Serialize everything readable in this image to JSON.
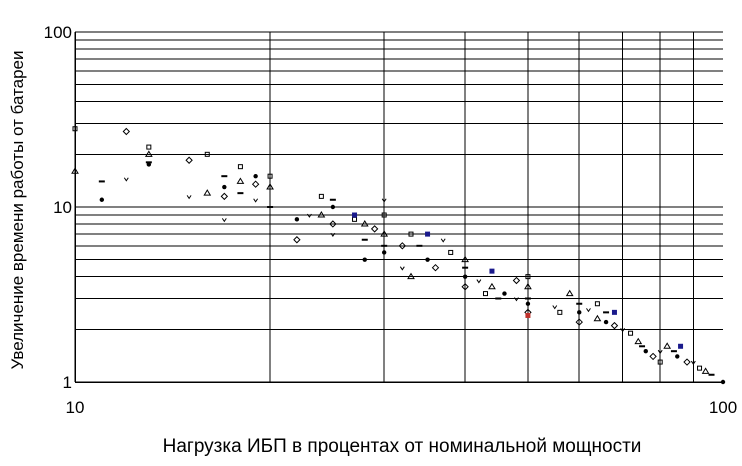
{
  "chart_data": {
    "type": "scatter",
    "title": "",
    "xlabel": "Нагрузка ИБП в процентах от номинальной мощности",
    "ylabel": "Увеличение времени работы от батареи",
    "x_scale": "log",
    "y_scale": "log",
    "xlim": [
      10,
      100
    ],
    "ylim": [
      1,
      100
    ],
    "x_ticks": [
      "10",
      "100"
    ],
    "y_ticks": [
      "100",
      "10",
      "1"
    ],
    "grid": true,
    "legend": "none",
    "colors": {
      "points": "#000000",
      "highlight_blue": "#1a1a8c",
      "highlight_red": "#c0302a",
      "grid": "#000000"
    },
    "series": [
      {
        "points": [
          [
            10,
            28
          ],
          [
            10,
            16
          ],
          [
            11,
            14
          ],
          [
            11,
            11
          ],
          [
            12,
            27
          ],
          [
            12,
            14.5
          ],
          [
            13,
            22
          ],
          [
            13,
            20
          ],
          [
            13,
            18
          ],
          [
            13,
            17.5
          ],
          [
            15,
            18.5
          ],
          [
            15,
            11.5
          ],
          [
            16,
            20
          ],
          [
            16,
            12
          ],
          [
            17,
            15
          ],
          [
            17,
            13
          ],
          [
            17,
            11.5
          ],
          [
            17,
            8.5
          ],
          [
            18,
            17
          ],
          [
            18,
            14
          ],
          [
            18,
            12
          ],
          [
            19,
            15
          ],
          [
            19,
            13.5
          ],
          [
            19,
            11
          ],
          [
            20,
            15
          ],
          [
            20,
            13
          ],
          [
            20,
            10
          ],
          [
            22,
            8.5
          ],
          [
            22,
            6.5
          ],
          [
            23,
            9
          ],
          [
            24,
            11.5
          ],
          [
            24,
            9
          ],
          [
            25,
            11
          ],
          [
            25,
            10
          ],
          [
            25,
            8
          ],
          [
            25,
            7
          ],
          [
            27,
            8.5
          ],
          [
            28,
            8
          ],
          [
            28,
            6.5
          ],
          [
            28,
            5
          ],
          [
            29,
            7.5
          ],
          [
            30,
            11
          ],
          [
            30,
            9
          ],
          [
            30,
            7
          ],
          [
            30,
            6
          ],
          [
            30,
            5.5
          ],
          [
            32,
            6
          ],
          [
            32,
            4.5
          ],
          [
            33,
            7
          ],
          [
            33,
            4
          ],
          [
            34,
            6
          ],
          [
            35,
            5
          ],
          [
            36,
            4.5
          ],
          [
            37,
            6.5
          ],
          [
            38,
            5.5
          ],
          [
            40,
            5
          ],
          [
            40,
            4.5
          ],
          [
            40,
            4
          ],
          [
            40,
            3.5
          ],
          [
            42,
            3.8
          ],
          [
            43,
            3.2
          ],
          [
            44,
            3.5
          ],
          [
            45,
            3
          ],
          [
            46,
            3.2
          ],
          [
            48,
            3.8
          ],
          [
            48,
            3
          ],
          [
            50,
            4
          ],
          [
            50,
            3.5
          ],
          [
            50,
            3
          ],
          [
            50,
            2.8
          ],
          [
            50,
            2.5
          ],
          [
            55,
            2.7
          ],
          [
            56,
            2.5
          ],
          [
            58,
            3.2
          ],
          [
            60,
            2.8
          ],
          [
            60,
            2.5
          ],
          [
            60,
            2.2
          ],
          [
            62,
            2.6
          ],
          [
            64,
            2.8
          ],
          [
            64,
            2.3
          ],
          [
            66,
            2.5
          ],
          [
            66,
            2.2
          ],
          [
            68,
            2.1
          ],
          [
            70,
            2
          ],
          [
            72,
            1.9
          ],
          [
            74,
            1.7
          ],
          [
            75,
            1.6
          ],
          [
            76,
            1.5
          ],
          [
            78,
            1.4
          ],
          [
            80,
            1.5
          ],
          [
            80,
            1.3
          ],
          [
            82,
            1.6
          ],
          [
            84,
            1.5
          ],
          [
            85,
            1.4
          ],
          [
            88,
            1.3
          ],
          [
            90,
            1.3
          ],
          [
            92,
            1.2
          ],
          [
            94,
            1.15
          ],
          [
            96,
            1.1
          ],
          [
            100,
            1
          ]
        ]
      },
      {
        "color": "#1a1a8c",
        "points": [
          [
            27,
            9
          ],
          [
            35,
            7
          ],
          [
            44,
            4.3
          ],
          [
            68,
            2.5
          ],
          [
            86,
            1.6
          ]
        ]
      },
      {
        "color": "#c0302a",
        "points": [
          [
            50,
            2.4
          ]
        ]
      }
    ]
  }
}
